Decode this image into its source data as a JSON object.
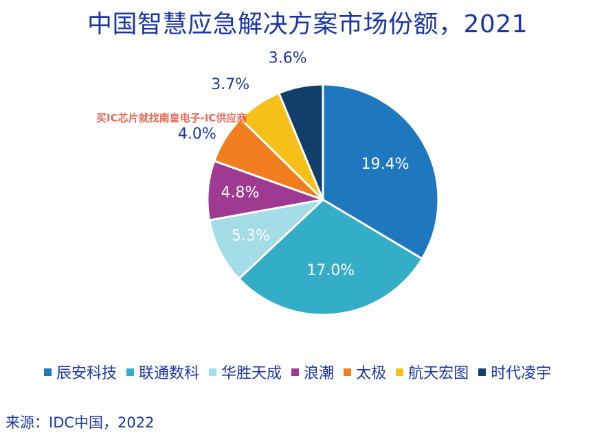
{
  "title": "中国智慧应急解决方案市场份额，2021",
  "watermark": "买IC芯片就找南皇电子-IC供应商",
  "source": "来源：IDC中国，2022",
  "chart_data": {
    "type": "pie",
    "title": "中国智慧应急解决方案市场份额，2021",
    "slices": [
      {
        "name": "辰安科技",
        "value": 19.4,
        "label": "19.4%",
        "color": "#1f77be",
        "label_color": "#ffffff"
      },
      {
        "name": "联通数科",
        "value": 17.0,
        "label": "17.0%",
        "color": "#33adc8",
        "label_color": "#ffffff"
      },
      {
        "name": "华胜天成",
        "value": 5.3,
        "label": "5.3%",
        "color": "#a4dce8",
        "label_color": "#ffffff"
      },
      {
        "name": "浪潮",
        "value": 4.8,
        "label": "4.8%",
        "color": "#9e3a91",
        "label_color": "#ffffff"
      },
      {
        "name": "太极",
        "value": 4.0,
        "label": "4.0%",
        "color": "#f07d1e",
        "label_color": "#1a35a6"
      },
      {
        "name": "航天宏图",
        "value": 3.7,
        "label": "3.7%",
        "color": "#f5c018",
        "label_color": "#1a35a6"
      },
      {
        "name": "时代凌宇",
        "value": 3.6,
        "label": "3.6%",
        "color": "#123f6a",
        "label_color": "#1a35a6"
      }
    ],
    "legend_position": "bottom",
    "start_angle": "12 o'clock, clockwise"
  }
}
